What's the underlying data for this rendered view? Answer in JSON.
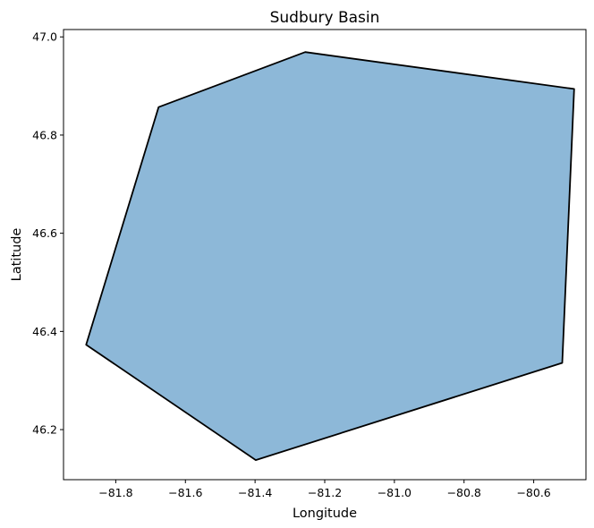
{
  "chart_data": {
    "type": "polygon-map",
    "title": "Sudbury Basin",
    "xlabel": "Longitude",
    "ylabel": "Latitude",
    "xlim": [
      -81.95,
      -80.45
    ],
    "ylim": [
      46.098,
      47.015
    ],
    "xticks": [
      -81.8,
      -81.6,
      -81.4,
      -81.2,
      -81.0,
      -80.8,
      -80.6
    ],
    "xtick_labels": [
      "−81.8",
      "−81.6",
      "−81.4",
      "−81.2",
      "−81.0",
      "−80.8",
      "−80.6"
    ],
    "yticks": [
      46.2,
      46.4,
      46.6,
      46.8,
      47.0
    ],
    "ytick_labels": [
      "46.2",
      "46.4",
      "46.6",
      "46.8",
      "47.0"
    ],
    "grid": false,
    "polygon": {
      "fill_color": "#8db8d8",
      "edge_color": "#000000",
      "vertices": [
        [
          -81.677,
          46.857
        ],
        [
          -81.256,
          46.969
        ],
        [
          -80.484,
          46.894
        ],
        [
          -80.518,
          46.336
        ],
        [
          -81.398,
          46.138
        ],
        [
          -81.885,
          46.373
        ]
      ]
    }
  }
}
